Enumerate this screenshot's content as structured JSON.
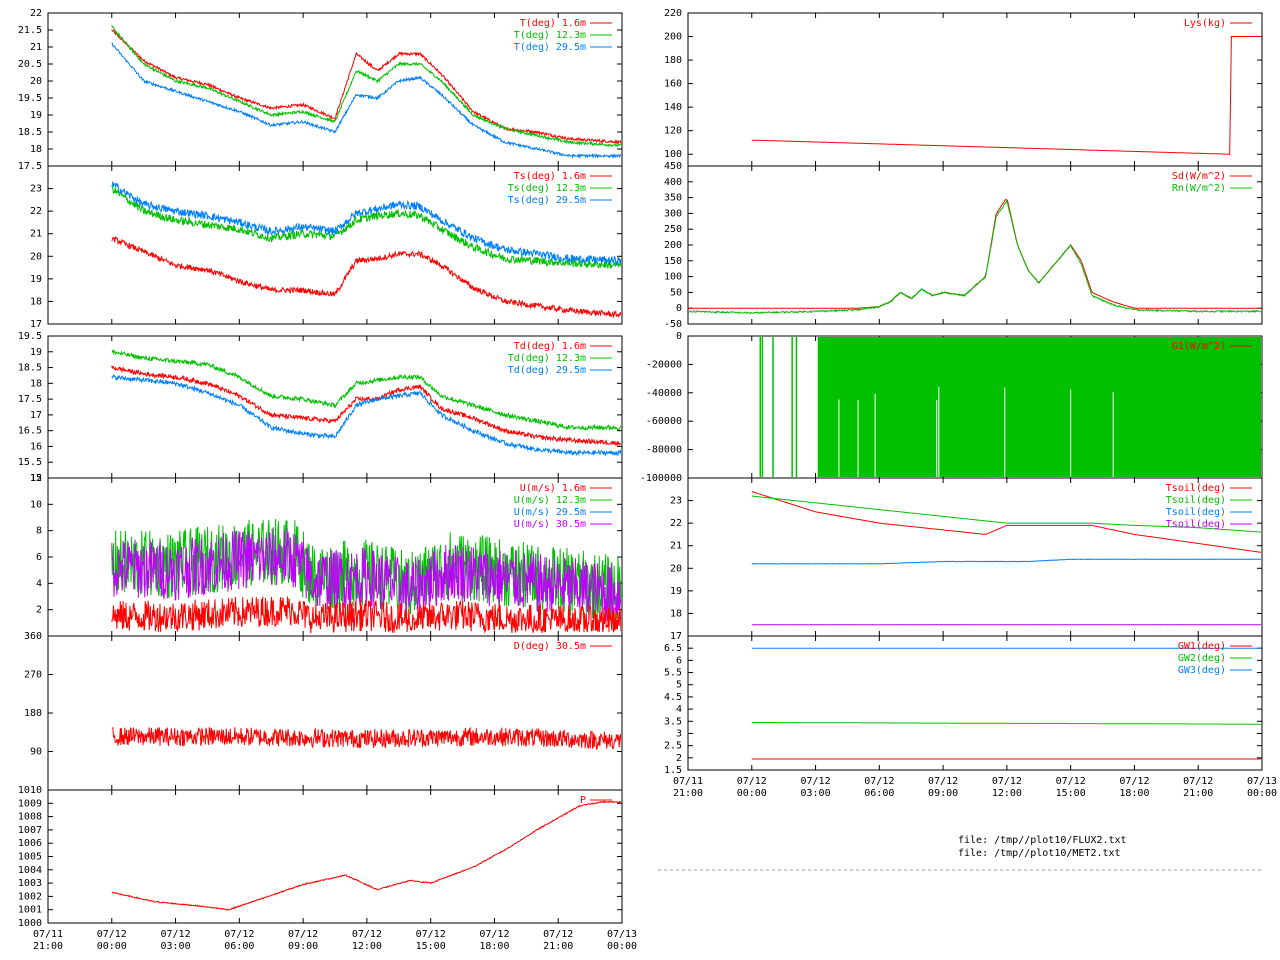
{
  "files": [
    "file: /tmp//plot10/FLUX2.txt",
    "file: /tmp//plot10/MET2.txt"
  ],
  "x_ticks": [
    {
      "date": "07/11",
      "time": "21:00"
    },
    {
      "date": "07/12",
      "time": "00:00"
    },
    {
      "date": "07/12",
      "time": "03:00"
    },
    {
      "date": "07/12",
      "time": "06:00"
    },
    {
      "date": "07/12",
      "time": "09:00"
    },
    {
      "date": "07/12",
      "time": "12:00"
    },
    {
      "date": "07/12",
      "time": "15:00"
    },
    {
      "date": "07/12",
      "time": "18:00"
    },
    {
      "date": "07/12",
      "time": "21:00"
    },
    {
      "date": "07/13",
      "time": "00:00"
    }
  ],
  "colors": {
    "red": "#ff0000",
    "green": "#00c000",
    "blue": "#0080ff",
    "magenta": "#c000ff"
  },
  "chart_data": [
    {
      "id": "T",
      "type": "line",
      "ylim": [
        17.5,
        22
      ],
      "yticks": [
        "22",
        "21.5",
        "21",
        "20.5",
        "20",
        "19.5",
        "19",
        "18.5",
        "18",
        "17.5"
      ],
      "legend": [
        {
          "name": "T(deg)  1.6m",
          "color": "red"
        },
        {
          "name": "T(deg) 12.3m",
          "color": "green"
        },
        {
          "name": "T(deg) 29.5m",
          "color": "blue"
        }
      ],
      "x_hours": [
        0,
        1.5,
        3,
        4.5,
        6,
        7.5,
        9,
        10.5,
        11.5,
        12.5,
        13.5,
        14.5,
        15.5,
        17,
        18.5,
        20,
        21.5,
        24
      ],
      "series": [
        {
          "color": "red",
          "noise": 0.08,
          "values": [
            21.5,
            20.6,
            20.1,
            19.9,
            19.5,
            19.2,
            19.3,
            18.9,
            20.8,
            20.3,
            20.8,
            20.8,
            20.2,
            19.1,
            18.6,
            18.5,
            18.3,
            18.2
          ]
        },
        {
          "color": "green",
          "noise": 0.08,
          "values": [
            21.6,
            20.5,
            20.0,
            19.8,
            19.4,
            19.0,
            19.1,
            18.8,
            20.3,
            20.0,
            20.5,
            20.5,
            20.0,
            19.0,
            18.6,
            18.4,
            18.2,
            18.1
          ]
        },
        {
          "color": "blue",
          "noise": 0.08,
          "values": [
            21.1,
            20.0,
            19.7,
            19.4,
            19.1,
            18.7,
            18.8,
            18.5,
            19.6,
            19.5,
            20.0,
            20.1,
            19.6,
            18.7,
            18.2,
            18.0,
            17.8,
            17.8
          ]
        }
      ]
    },
    {
      "id": "Ts",
      "type": "line",
      "ylim": [
        17,
        24
      ],
      "yticks": [
        "23",
        "22",
        "21",
        "20",
        "19",
        "18",
        "17"
      ],
      "legend": [
        {
          "name": "Ts(deg)  1.6m",
          "color": "red"
        },
        {
          "name": "Ts(deg) 12.3m",
          "color": "green"
        },
        {
          "name": "Ts(deg) 29.5m",
          "color": "blue"
        }
      ],
      "x_hours": [
        0,
        1.5,
        3,
        4.5,
        6,
        7.5,
        9,
        10.5,
        11.5,
        12.5,
        13.5,
        14.5,
        15.5,
        17,
        18.5,
        20,
        21.5,
        24
      ],
      "series": [
        {
          "color": "red",
          "noise": 0.25,
          "values": [
            20.8,
            20.2,
            19.6,
            19.4,
            18.9,
            18.5,
            18.5,
            18.3,
            19.8,
            19.9,
            20.1,
            20.1,
            19.6,
            18.6,
            18.0,
            17.8,
            17.6,
            17.4
          ]
        },
        {
          "color": "green",
          "noise": 0.35,
          "values": [
            23.0,
            22.0,
            21.6,
            21.4,
            21.2,
            20.8,
            21.0,
            20.9,
            21.6,
            21.8,
            21.9,
            21.8,
            21.2,
            20.4,
            19.9,
            19.8,
            19.7,
            19.6
          ]
        },
        {
          "color": "blue",
          "noise": 0.35,
          "values": [
            23.2,
            22.3,
            22.0,
            21.8,
            21.5,
            21.1,
            21.3,
            21.1,
            21.9,
            22.1,
            22.3,
            22.2,
            21.6,
            20.8,
            20.3,
            20.1,
            19.9,
            19.8
          ]
        }
      ]
    },
    {
      "id": "Td",
      "type": "line",
      "ylim": [
        15,
        19.5
      ],
      "yticks": [
        "19.5",
        "19",
        "18.5",
        "18",
        "17.5",
        "17",
        "16.5",
        "16",
        "15.5",
        "15"
      ],
      "legend": [
        {
          "name": "Td(deg)  1.6m",
          "color": "red"
        },
        {
          "name": "Td(deg) 12.3m",
          "color": "green"
        },
        {
          "name": "Td(deg) 29.5m",
          "color": "blue"
        }
      ],
      "x_hours": [
        0,
        1.5,
        3,
        4.5,
        6,
        7.5,
        9,
        10.5,
        11.5,
        12.5,
        13.5,
        14.5,
        15.5,
        17,
        18.5,
        20,
        21.5,
        24
      ],
      "series": [
        {
          "color": "red",
          "noise": 0.14,
          "values": [
            18.5,
            18.3,
            18.2,
            18.0,
            17.6,
            17.0,
            16.9,
            16.8,
            17.5,
            17.5,
            17.8,
            17.9,
            17.2,
            16.9,
            16.5,
            16.3,
            16.2,
            16.1
          ]
        },
        {
          "color": "green",
          "noise": 0.14,
          "values": [
            19.0,
            18.8,
            18.7,
            18.6,
            18.2,
            17.6,
            17.5,
            17.3,
            18.0,
            18.1,
            18.2,
            18.2,
            17.6,
            17.3,
            17.0,
            16.8,
            16.6,
            16.6
          ]
        },
        {
          "color": "blue",
          "noise": 0.14,
          "values": [
            18.2,
            18.1,
            18.0,
            17.7,
            17.3,
            16.6,
            16.4,
            16.3,
            17.3,
            17.5,
            17.6,
            17.7,
            17.0,
            16.5,
            16.1,
            15.9,
            15.8,
            15.8
          ]
        }
      ]
    },
    {
      "id": "U",
      "type": "line",
      "ylim": [
        0,
        12
      ],
      "yticks": [
        "12",
        "10",
        "8",
        "6",
        "4",
        "2"
      ],
      "legend": [
        {
          "name": "U(m/s)  1.6m",
          "color": "red"
        },
        {
          "name": "U(m/s) 12.3m",
          "color": "green"
        },
        {
          "name": "U(m/s) 29.5m",
          "color": "blue"
        },
        {
          "name": "U(m/s) 30.5m",
          "color": "magenta"
        }
      ],
      "x_hours": [
        0,
        3,
        6,
        8.5,
        9.5,
        12,
        14,
        16,
        19,
        21,
        24
      ],
      "series": [
        {
          "color": "green",
          "noise": 2.6,
          "values": [
            5.5,
            5.4,
            6.2,
            6.5,
            4.5,
            4.8,
            3.8,
            5.5,
            4.6,
            4.2,
            3.5
          ]
        },
        {
          "color": "magenta",
          "noise": 2.3,
          "values": [
            5.2,
            5.0,
            5.8,
            6.0,
            4.2,
            4.5,
            3.5,
            5.0,
            4.2,
            3.8,
            3.2
          ]
        },
        {
          "color": "red",
          "noise": 1.2,
          "values": [
            1.5,
            1.5,
            1.8,
            2.0,
            1.3,
            1.6,
            1.2,
            1.6,
            1.3,
            1.2,
            1.0
          ]
        }
      ]
    },
    {
      "id": "D",
      "type": "line",
      "ylim": [
        0,
        360
      ],
      "yticks": [
        "360",
        "270",
        "180",
        "90"
      ],
      "legend": [
        {
          "name": "D(deg)  30.5m",
          "color": "red"
        }
      ],
      "x_hours": [
        0,
        6,
        12,
        18,
        24
      ],
      "series": [
        {
          "color": "red",
          "noise": 22,
          "values": [
            125,
            125,
            120,
            125,
            115
          ]
        }
      ]
    },
    {
      "id": "P",
      "type": "line",
      "ylim": [
        1000,
        1010
      ],
      "yticks": [
        "1010",
        "1009",
        "1008",
        "1007",
        "1006",
        "1005",
        "1004",
        "1003",
        "1002",
        "1001",
        "1000"
      ],
      "legend": [
        {
          "name": "P",
          "color": "red"
        }
      ],
      "x_hours": [
        0,
        2,
        4,
        5.5,
        7,
        9,
        11,
        12.5,
        14,
        15,
        17,
        18.5,
        20,
        22,
        23,
        24
      ],
      "series": [
        {
          "color": "red",
          "noise": 0.08,
          "values": [
            1002.3,
            1001.6,
            1001.3,
            1001.0,
            1001.8,
            1002.9,
            1003.6,
            1002.5,
            1003.2,
            1003.0,
            1004.2,
            1005.5,
            1007.0,
            1008.8,
            1009.1,
            1009.1
          ]
        }
      ]
    },
    {
      "id": "Lys",
      "type": "line",
      "ylim": [
        90,
        220
      ],
      "yticks": [
        "220",
        "200",
        "180",
        "160",
        "140",
        "120",
        "100"
      ],
      "legend": [
        {
          "name": "Lys(kg)",
          "color": "red"
        }
      ],
      "x_hours": [
        0,
        22.5,
        22.51,
        24
      ],
      "series": [
        {
          "color": "red",
          "noise": 0,
          "values": [
            112,
            100,
            200,
            200
          ]
        }
      ]
    },
    {
      "id": "Rad",
      "type": "line",
      "ylim": [
        -50,
        450
      ],
      "yticks": [
        "450",
        "400",
        "350",
        "300",
        "250",
        "200",
        "150",
        "100",
        "50",
        "0",
        "-50"
      ],
      "legend": [
        {
          "name": "Sd(W/m^2)",
          "color": "red"
        },
        {
          "name": "Rn(W/m^2)",
          "color": "green"
        }
      ],
      "x_hours": [
        -3,
        0,
        3,
        5,
        6,
        6.5,
        7,
        7.5,
        8,
        8.5,
        9,
        10,
        11,
        11.5,
        12,
        12.5,
        13,
        13.5,
        14,
        15,
        15.5,
        16,
        17,
        18,
        21,
        24
      ],
      "series": [
        {
          "color": "red",
          "noise": 0,
          "values": [
            0,
            0,
            0,
            0,
            5,
            20,
            50,
            30,
            60,
            40,
            50,
            40,
            100,
            300,
            350,
            200,
            120,
            80,
            120,
            200,
            150,
            50,
            20,
            0,
            0,
            0
          ]
        },
        {
          "color": "green",
          "noise": 5,
          "values": [
            -10,
            -15,
            -10,
            -5,
            5,
            20,
            50,
            30,
            60,
            40,
            50,
            40,
            100,
            290,
            340,
            200,
            120,
            80,
            120,
            200,
            140,
            40,
            10,
            -5,
            -10,
            -10
          ]
        }
      ]
    },
    {
      "id": "G",
      "type": "line",
      "ylim": [
        -100000,
        0
      ],
      "yticks": [
        "0",
        "-20000",
        "-40000",
        "-60000",
        "-80000",
        "-100000"
      ],
      "legend": [
        {
          "name": "G1(W/m^2)",
          "color": "red"
        },
        {
          "name": "G2(W/m^2)",
          "color": "green"
        }
      ],
      "fill_from_hour": 3.1,
      "spikes_hours": [
        0.4,
        0.5,
        1.0,
        1.9,
        2.1
      ],
      "gaps_hours": [
        4.1,
        5.0,
        5.8,
        8.7,
        8.8,
        11.9,
        15.0,
        17.0
      ],
      "series": [
        {
          "color": "red",
          "noise": 0,
          "values": [
            0,
            0
          ]
        }
      ]
    },
    {
      "id": "Tsoil",
      "type": "line",
      "ylim": [
        17,
        24
      ],
      "yticks": [
        "23",
        "22",
        "21",
        "20",
        "19",
        "18",
        "17"
      ],
      "legend": [
        {
          "name": "Tsoil(deg)",
          "color": "red"
        },
        {
          "name": "Tsoil(deg)",
          "color": "green"
        },
        {
          "name": "Tsoil(deg)",
          "color": "blue"
        },
        {
          "name": "Tsoil(deg)",
          "color": "magenta"
        }
      ],
      "x_hours": [
        0,
        3,
        6,
        9,
        11,
        12,
        13,
        15,
        16,
        18,
        21,
        24
      ],
      "series": [
        {
          "color": "red",
          "noise": 0,
          "values": [
            23.4,
            22.5,
            22.0,
            21.7,
            21.5,
            21.9,
            21.9,
            21.9,
            21.9,
            21.5,
            21.1,
            20.7
          ]
        },
        {
          "color": "green",
          "noise": 0,
          "values": [
            23.2,
            22.9,
            22.6,
            22.3,
            22.1,
            22.0,
            22.0,
            22.0,
            22.0,
            21.9,
            21.8,
            21.6
          ]
        },
        {
          "color": "blue",
          "noise": 0.02,
          "values": [
            20.2,
            20.2,
            20.2,
            20.3,
            20.3,
            20.3,
            20.3,
            20.4,
            20.4,
            20.4,
            20.4,
            20.4
          ]
        },
        {
          "color": "magenta",
          "noise": 0.01,
          "values": [
            17.5,
            17.5,
            17.5,
            17.5,
            17.5,
            17.5,
            17.5,
            17.5,
            17.5,
            17.5,
            17.5,
            17.5
          ]
        }
      ]
    },
    {
      "id": "GW",
      "type": "line",
      "ylim": [
        1.5,
        7
      ],
      "yticks": [
        "6.5",
        "6",
        "5.5",
        "5",
        "4.5",
        "4",
        "3.5",
        "3",
        "2.5",
        "2",
        "1.5"
      ],
      "legend": [
        {
          "name": "GW1(deg)",
          "color": "red"
        },
        {
          "name": "GW2(deg)",
          "color": "green"
        },
        {
          "name": "GW3(deg)",
          "color": "blue"
        }
      ],
      "x_hours": [
        0,
        24
      ],
      "series": [
        {
          "color": "blue",
          "noise": 0,
          "values": [
            6.5,
            6.5
          ]
        },
        {
          "color": "green",
          "noise": 0,
          "values": [
            3.45,
            3.38
          ]
        },
        {
          "color": "red",
          "noise": 0,
          "values": [
            1.95,
            1.95
          ]
        }
      ]
    }
  ]
}
